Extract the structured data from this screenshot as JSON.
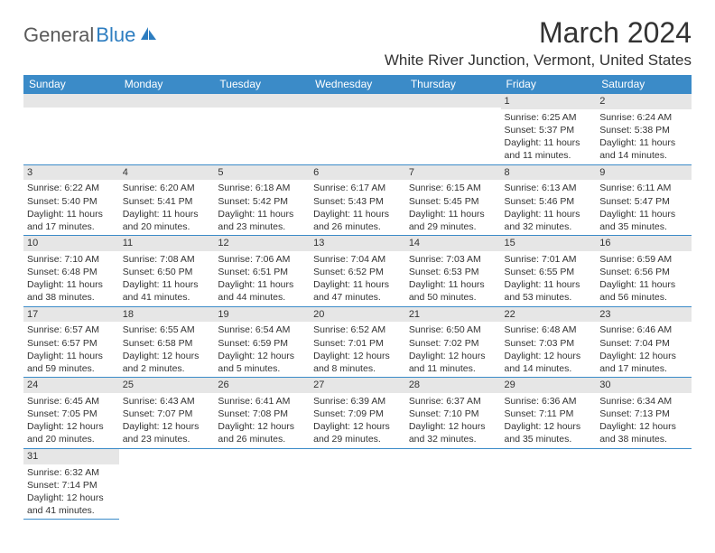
{
  "logo": {
    "part1": "General",
    "part2": "Blue"
  },
  "title": "March 2024",
  "location": "White River Junction, Vermont, United States",
  "colors": {
    "header_bg": "#3b8bc8",
    "header_text": "#ffffff",
    "daynum_bg": "#e6e6e6",
    "border": "#3b8bc8",
    "logo_gray": "#5a5a5a",
    "logo_blue": "#2d7dc0"
  },
  "day_headers": [
    "Sunday",
    "Monday",
    "Tuesday",
    "Wednesday",
    "Thursday",
    "Friday",
    "Saturday"
  ],
  "weeks": [
    [
      {
        "n": "",
        "sr": "",
        "ss": "",
        "dl": ""
      },
      {
        "n": "",
        "sr": "",
        "ss": "",
        "dl": ""
      },
      {
        "n": "",
        "sr": "",
        "ss": "",
        "dl": ""
      },
      {
        "n": "",
        "sr": "",
        "ss": "",
        "dl": ""
      },
      {
        "n": "",
        "sr": "",
        "ss": "",
        "dl": ""
      },
      {
        "n": "1",
        "sr": "Sunrise: 6:25 AM",
        "ss": "Sunset: 5:37 PM",
        "dl": "Daylight: 11 hours and 11 minutes."
      },
      {
        "n": "2",
        "sr": "Sunrise: 6:24 AM",
        "ss": "Sunset: 5:38 PM",
        "dl": "Daylight: 11 hours and 14 minutes."
      }
    ],
    [
      {
        "n": "3",
        "sr": "Sunrise: 6:22 AM",
        "ss": "Sunset: 5:40 PM",
        "dl": "Daylight: 11 hours and 17 minutes."
      },
      {
        "n": "4",
        "sr": "Sunrise: 6:20 AM",
        "ss": "Sunset: 5:41 PM",
        "dl": "Daylight: 11 hours and 20 minutes."
      },
      {
        "n": "5",
        "sr": "Sunrise: 6:18 AM",
        "ss": "Sunset: 5:42 PM",
        "dl": "Daylight: 11 hours and 23 minutes."
      },
      {
        "n": "6",
        "sr": "Sunrise: 6:17 AM",
        "ss": "Sunset: 5:43 PM",
        "dl": "Daylight: 11 hours and 26 minutes."
      },
      {
        "n": "7",
        "sr": "Sunrise: 6:15 AM",
        "ss": "Sunset: 5:45 PM",
        "dl": "Daylight: 11 hours and 29 minutes."
      },
      {
        "n": "8",
        "sr": "Sunrise: 6:13 AM",
        "ss": "Sunset: 5:46 PM",
        "dl": "Daylight: 11 hours and 32 minutes."
      },
      {
        "n": "9",
        "sr": "Sunrise: 6:11 AM",
        "ss": "Sunset: 5:47 PM",
        "dl": "Daylight: 11 hours and 35 minutes."
      }
    ],
    [
      {
        "n": "10",
        "sr": "Sunrise: 7:10 AM",
        "ss": "Sunset: 6:48 PM",
        "dl": "Daylight: 11 hours and 38 minutes."
      },
      {
        "n": "11",
        "sr": "Sunrise: 7:08 AM",
        "ss": "Sunset: 6:50 PM",
        "dl": "Daylight: 11 hours and 41 minutes."
      },
      {
        "n": "12",
        "sr": "Sunrise: 7:06 AM",
        "ss": "Sunset: 6:51 PM",
        "dl": "Daylight: 11 hours and 44 minutes."
      },
      {
        "n": "13",
        "sr": "Sunrise: 7:04 AM",
        "ss": "Sunset: 6:52 PM",
        "dl": "Daylight: 11 hours and 47 minutes."
      },
      {
        "n": "14",
        "sr": "Sunrise: 7:03 AM",
        "ss": "Sunset: 6:53 PM",
        "dl": "Daylight: 11 hours and 50 minutes."
      },
      {
        "n": "15",
        "sr": "Sunrise: 7:01 AM",
        "ss": "Sunset: 6:55 PM",
        "dl": "Daylight: 11 hours and 53 minutes."
      },
      {
        "n": "16",
        "sr": "Sunrise: 6:59 AM",
        "ss": "Sunset: 6:56 PM",
        "dl": "Daylight: 11 hours and 56 minutes."
      }
    ],
    [
      {
        "n": "17",
        "sr": "Sunrise: 6:57 AM",
        "ss": "Sunset: 6:57 PM",
        "dl": "Daylight: 11 hours and 59 minutes."
      },
      {
        "n": "18",
        "sr": "Sunrise: 6:55 AM",
        "ss": "Sunset: 6:58 PM",
        "dl": "Daylight: 12 hours and 2 minutes."
      },
      {
        "n": "19",
        "sr": "Sunrise: 6:54 AM",
        "ss": "Sunset: 6:59 PM",
        "dl": "Daylight: 12 hours and 5 minutes."
      },
      {
        "n": "20",
        "sr": "Sunrise: 6:52 AM",
        "ss": "Sunset: 7:01 PM",
        "dl": "Daylight: 12 hours and 8 minutes."
      },
      {
        "n": "21",
        "sr": "Sunrise: 6:50 AM",
        "ss": "Sunset: 7:02 PM",
        "dl": "Daylight: 12 hours and 11 minutes."
      },
      {
        "n": "22",
        "sr": "Sunrise: 6:48 AM",
        "ss": "Sunset: 7:03 PM",
        "dl": "Daylight: 12 hours and 14 minutes."
      },
      {
        "n": "23",
        "sr": "Sunrise: 6:46 AM",
        "ss": "Sunset: 7:04 PM",
        "dl": "Daylight: 12 hours and 17 minutes."
      }
    ],
    [
      {
        "n": "24",
        "sr": "Sunrise: 6:45 AM",
        "ss": "Sunset: 7:05 PM",
        "dl": "Daylight: 12 hours and 20 minutes."
      },
      {
        "n": "25",
        "sr": "Sunrise: 6:43 AM",
        "ss": "Sunset: 7:07 PM",
        "dl": "Daylight: 12 hours and 23 minutes."
      },
      {
        "n": "26",
        "sr": "Sunrise: 6:41 AM",
        "ss": "Sunset: 7:08 PM",
        "dl": "Daylight: 12 hours and 26 minutes."
      },
      {
        "n": "27",
        "sr": "Sunrise: 6:39 AM",
        "ss": "Sunset: 7:09 PM",
        "dl": "Daylight: 12 hours and 29 minutes."
      },
      {
        "n": "28",
        "sr": "Sunrise: 6:37 AM",
        "ss": "Sunset: 7:10 PM",
        "dl": "Daylight: 12 hours and 32 minutes."
      },
      {
        "n": "29",
        "sr": "Sunrise: 6:36 AM",
        "ss": "Sunset: 7:11 PM",
        "dl": "Daylight: 12 hours and 35 minutes."
      },
      {
        "n": "30",
        "sr": "Sunrise: 6:34 AM",
        "ss": "Sunset: 7:13 PM",
        "dl": "Daylight: 12 hours and 38 minutes."
      }
    ],
    [
      {
        "n": "31",
        "sr": "Sunrise: 6:32 AM",
        "ss": "Sunset: 7:14 PM",
        "dl": "Daylight: 12 hours and 41 minutes."
      },
      {
        "n": "",
        "sr": "",
        "ss": "",
        "dl": ""
      },
      {
        "n": "",
        "sr": "",
        "ss": "",
        "dl": ""
      },
      {
        "n": "",
        "sr": "",
        "ss": "",
        "dl": ""
      },
      {
        "n": "",
        "sr": "",
        "ss": "",
        "dl": ""
      },
      {
        "n": "",
        "sr": "",
        "ss": "",
        "dl": ""
      },
      {
        "n": "",
        "sr": "",
        "ss": "",
        "dl": ""
      }
    ]
  ]
}
